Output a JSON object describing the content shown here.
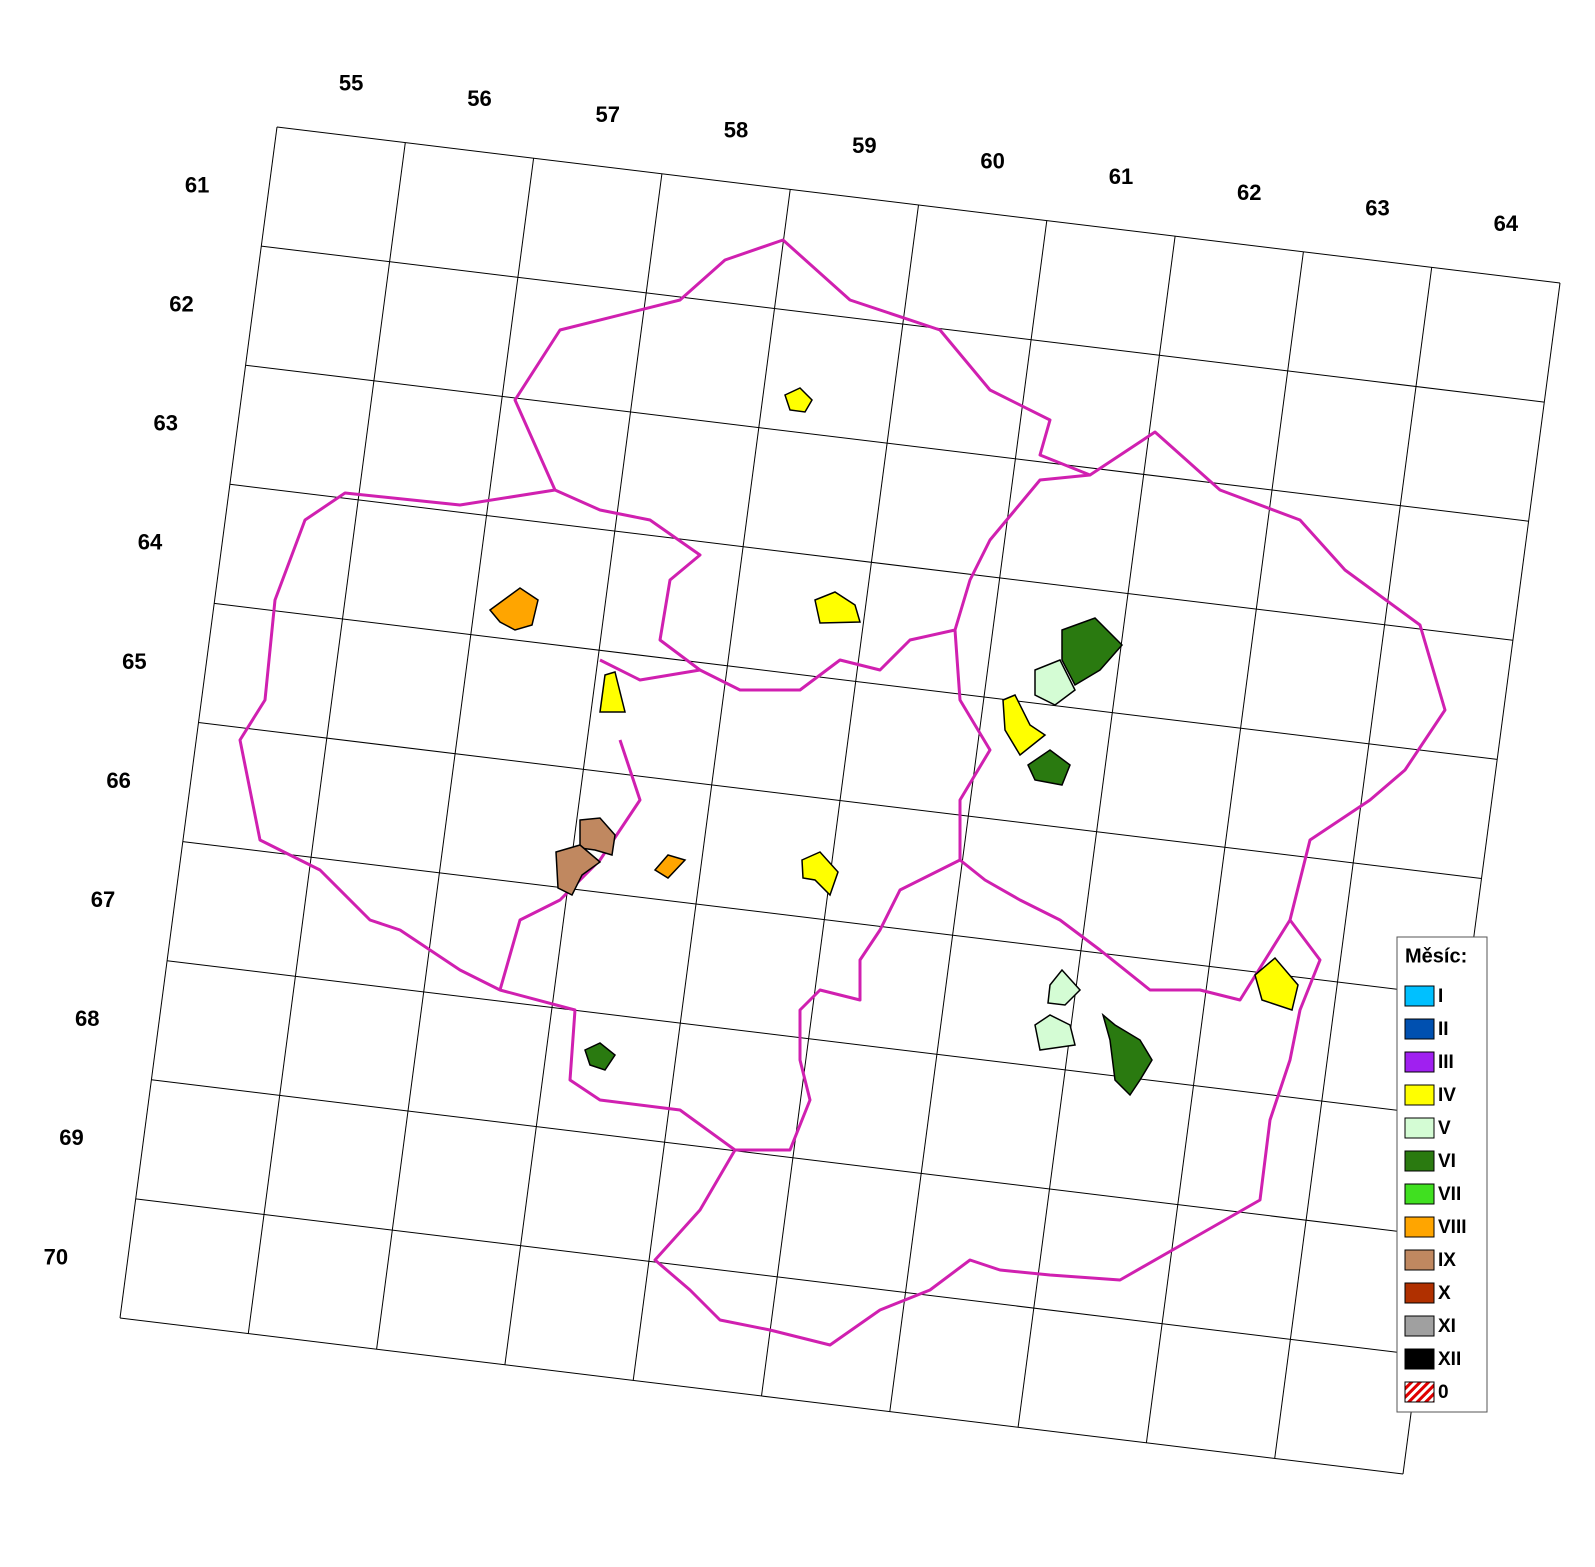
{
  "grid": {
    "columns": [
      "55",
      "56",
      "57",
      "58",
      "59",
      "60",
      "61",
      "62",
      "63",
      "64"
    ],
    "rows": [
      "61",
      "62",
      "63",
      "64",
      "65",
      "66",
      "67",
      "68",
      "69",
      "70"
    ]
  },
  "legend": {
    "title": "Měsíc:",
    "items": [
      {
        "label": "I",
        "color": "#00c0ff"
      },
      {
        "label": "II",
        "color": "#0050b0"
      },
      {
        "label": "III",
        "color": "#a020f0"
      },
      {
        "label": "IV",
        "color": "#ffff00"
      },
      {
        "label": "V",
        "color": "#d4fcd4"
      },
      {
        "label": "VI",
        "color": "#2a7a10"
      },
      {
        "label": "VII",
        "color": "#40e020"
      },
      {
        "label": "VIII",
        "color": "#ffa500"
      },
      {
        "label": "IX",
        "color": "#c08860"
      },
      {
        "label": "X",
        "color": "#b03000"
      },
      {
        "label": "XI",
        "color": "#a0a0a0"
      },
      {
        "label": "XII",
        "color": "#000000"
      },
      {
        "label": "0",
        "color": "#ff0000",
        "pattern": "hatch"
      }
    ]
  }
}
